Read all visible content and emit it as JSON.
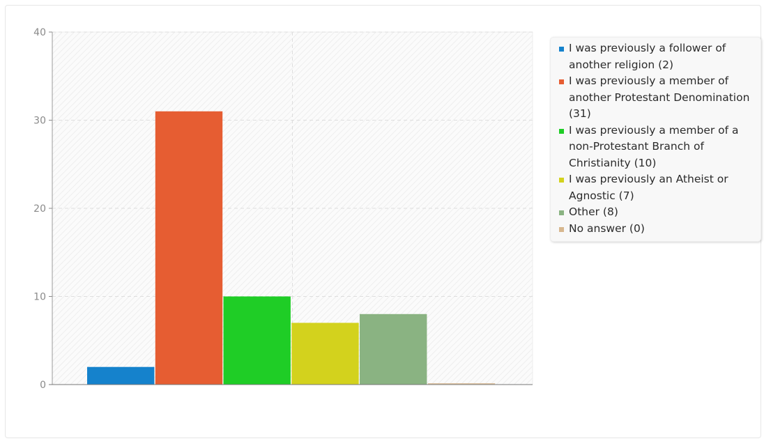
{
  "chart_data": {
    "type": "bar",
    "title": "",
    "xlabel": "",
    "ylabel": "",
    "ylim": [
      0,
      40
    ],
    "yticks": [
      0,
      10,
      20,
      30,
      40
    ],
    "grid": true,
    "legend_position": "right",
    "series": [
      {
        "label": "I was previously a follower of another religion (2)",
        "value": 2,
        "color": "#1582cc"
      },
      {
        "label": "I was previously a member of another Protestant Denomination (31)",
        "value": 31,
        "color": "#e65d32"
      },
      {
        "label": "I was previously a member of a non-Protestant Branch of Christianity (10)",
        "value": 10,
        "color": "#1fcd26"
      },
      {
        "label": "I was previously an Atheist or Agnostic (7)",
        "value": 7,
        "color": "#d3d21d"
      },
      {
        "label": "Other (8)",
        "value": 8,
        "color": "#8ab382"
      },
      {
        "label": "No answer (0)",
        "value": 0,
        "color": "#d7b78e"
      }
    ]
  }
}
